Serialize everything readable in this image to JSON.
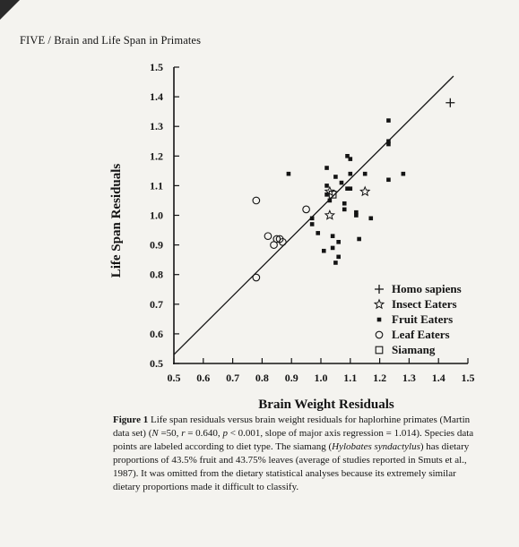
{
  "page": {
    "running_head": "FIVE / Brain and Life Span in Primates"
  },
  "caption": {
    "label": "Figure 1",
    "part1": "Life span residuals versus brain weight residuals for haplorhine primates (Martin data set) (",
    "stats_n": "N",
    "part2": " =50, ",
    "stats_r": "r",
    "part3": " = 0.640, ",
    "stats_p": "p",
    "part4": " < 0.001, slope of major axis regression = 1.014). Species data points are labeled according to diet type. The siamang (",
    "species": "Hylobates syndactylus",
    "part5": ") has dietary proportions of 43.5% fruit and 43.75% leaves (average of studies reported in Smuts et al., 1987). It was omitted from the dietary statistical analyses because its extremely similar dietary proportions made it difficult to classify."
  },
  "chart_data": {
    "type": "scatter",
    "xlabel": "Brain Weight Residuals",
    "ylabel": "Life Span Residuals",
    "xlim": [
      0.5,
      1.5
    ],
    "ylim": [
      0.5,
      1.5
    ],
    "xticks": [
      "0.5",
      "0.6",
      "0.7",
      "0.8",
      "0.9",
      "1.0",
      "1.1",
      "1.2",
      "1.3",
      "1.4",
      "1.5"
    ],
    "yticks": [
      "0.5",
      "0.6",
      "0.7",
      "0.8",
      "0.9",
      "1.0",
      "1.1",
      "1.2",
      "1.3",
      "1.4",
      "1.5"
    ],
    "legend_position": "bottom-right",
    "regression_line": {
      "x": [
        0.5,
        1.5
      ],
      "y": [
        0.53,
        1.55
      ]
    },
    "series": [
      {
        "name": "Homo sapiens",
        "marker": "plus",
        "points": [
          [
            1.44,
            1.38
          ]
        ]
      },
      {
        "name": "Insect Eaters",
        "marker": "star",
        "points": [
          [
            1.15,
            1.08
          ],
          [
            1.03,
            1.0
          ],
          [
            1.03,
            1.08
          ]
        ]
      },
      {
        "name": "Fruit Eaters",
        "marker": "square-filled",
        "points": [
          [
            0.89,
            1.14
          ],
          [
            0.97,
            0.99
          ],
          [
            0.97,
            0.97
          ],
          [
            0.99,
            0.94
          ],
          [
            1.01,
            0.88
          ],
          [
            1.02,
            1.16
          ],
          [
            1.02,
            1.1
          ],
          [
            1.02,
            1.07
          ],
          [
            1.03,
            1.05
          ],
          [
            1.04,
            0.93
          ],
          [
            1.04,
            0.89
          ],
          [
            1.05,
            1.13
          ],
          [
            1.05,
            0.84
          ],
          [
            1.06,
            0.91
          ],
          [
            1.06,
            0.86
          ],
          [
            1.07,
            1.11
          ],
          [
            1.08,
            1.04
          ],
          [
            1.08,
            1.02
          ],
          [
            1.09,
            1.2
          ],
          [
            1.09,
            1.09
          ],
          [
            1.1,
            1.19
          ],
          [
            1.1,
            1.14
          ],
          [
            1.1,
            1.09
          ],
          [
            1.12,
            1.01
          ],
          [
            1.12,
            1.0
          ],
          [
            1.13,
            0.92
          ],
          [
            1.15,
            1.14
          ],
          [
            1.17,
            0.99
          ],
          [
            1.23,
            1.32
          ],
          [
            1.23,
            1.25
          ],
          [
            1.23,
            1.24
          ],
          [
            1.23,
            1.12
          ],
          [
            1.28,
            1.14
          ]
        ]
      },
      {
        "name": "Leaf Eaters",
        "marker": "circle-open",
        "points": [
          [
            0.78,
            1.05
          ],
          [
            0.78,
            0.79
          ],
          [
            0.82,
            0.93
          ],
          [
            0.84,
            0.9
          ],
          [
            0.85,
            0.92
          ],
          [
            0.86,
            0.92
          ],
          [
            0.87,
            0.91
          ],
          [
            0.95,
            1.02
          ]
        ]
      },
      {
        "name": "Siamang",
        "marker": "square-open",
        "points": [
          [
            1.04,
            1.07
          ]
        ]
      }
    ]
  }
}
